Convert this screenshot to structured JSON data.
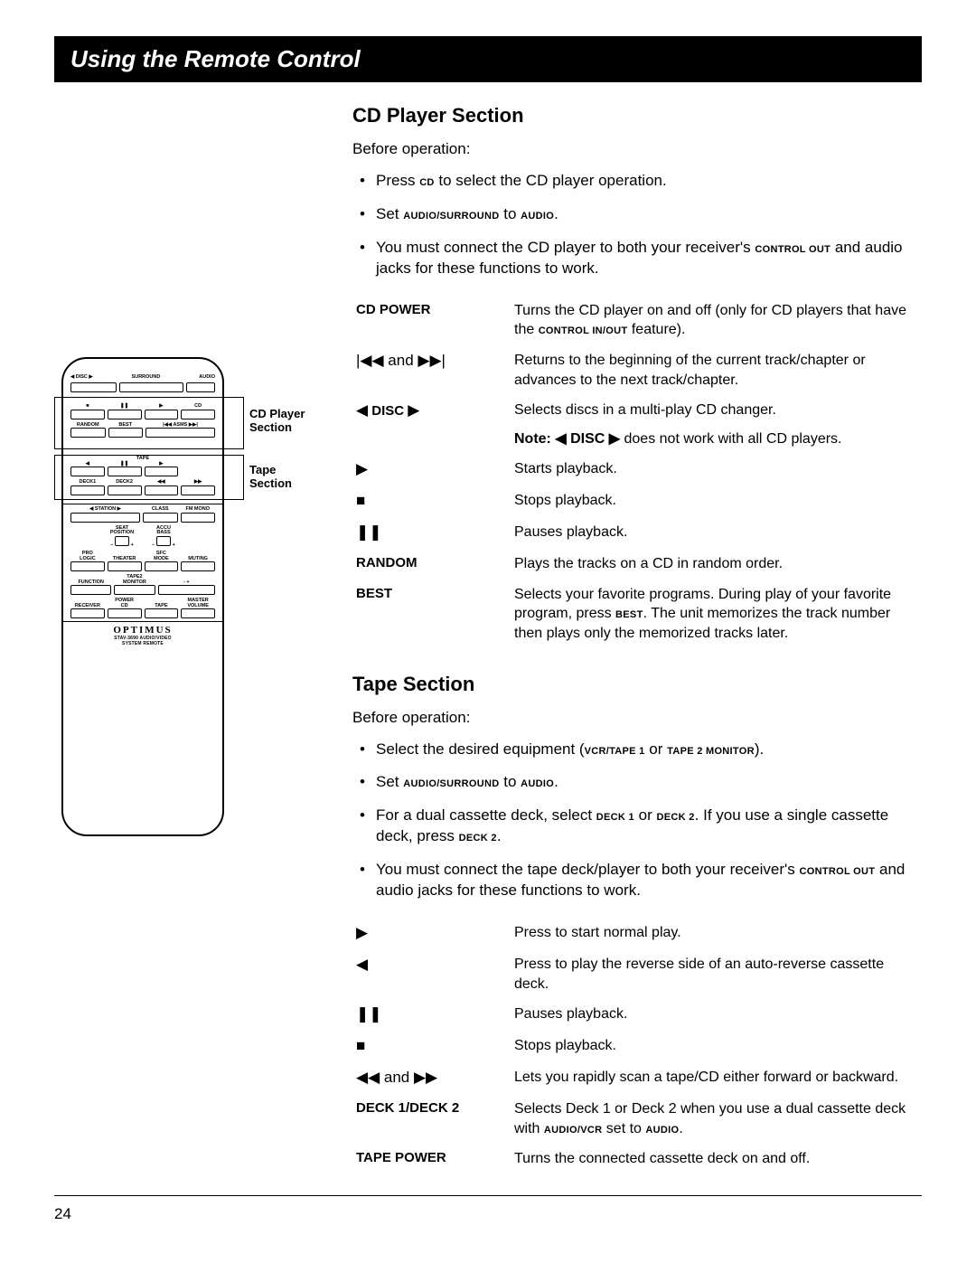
{
  "title": "Using the Remote Control",
  "page_number": "24",
  "cd": {
    "heading": "CD Player Section",
    "before": "Before operation:",
    "bullets": [
      {
        "pre": "Press ",
        "sc": "CD",
        "post": " to select the CD player operation."
      },
      {
        "pre": "Set ",
        "sc": "AUDIO/SURROUND",
        "mid": " to ",
        "sc2": "AUDIO",
        "post": "."
      },
      {
        "pre": "You must connect the CD player to both your receiver's ",
        "sc": "CONTROL OUT",
        "post": " and audio jacks for these functions to work."
      }
    ],
    "rows": [
      {
        "term": "CD POWER",
        "desc_pre": "Turns the CD player on and off (only for CD players that have the ",
        "desc_sc": "CONTROL IN/OUT",
        "desc_post": " feature)."
      },
      {
        "term_sym": "|◀◀ and ▶▶|",
        "desc": "Returns to the beginning of the current track/chapter or advances to the next track/chapter."
      },
      {
        "term_sym": "◀ DISC ▶",
        "desc": "Selects discs in a multi-play CD changer.",
        "note_pre": "Note: ◀ DISC ▶",
        "note_post": " does not work with all CD players."
      },
      {
        "term_sym": "▶",
        "desc": "Starts playback."
      },
      {
        "term_sym": "■",
        "desc": "Stops playback."
      },
      {
        "term_sym": "❚❚",
        "desc": "Pauses playback."
      },
      {
        "term": "RANDOM",
        "desc": "Plays the tracks on a CD in random order."
      },
      {
        "term": "BEST",
        "desc_pre": "Selects your favorite programs. During play of your favorite program, press ",
        "desc_sc": "BEST",
        "desc_post": ". The unit memorizes the track number then plays only the memorized tracks later."
      }
    ]
  },
  "tape": {
    "heading": "Tape Section",
    "before": "Before operation:",
    "bullets": [
      {
        "pre": "Select the desired equipment (",
        "sc": "VCR/TAPE 1",
        "mid": " or ",
        "sc2": "TAPE 2 MONITOR",
        "post": ")."
      },
      {
        "pre": "Set ",
        "sc": "AUDIO/SURROUND",
        "mid": " to ",
        "sc2": "AUDIO",
        "post": "."
      },
      {
        "pre": "For a dual cassette deck, select ",
        "sc": "DECK 1",
        "mid": " or ",
        "sc2": "DECK 2",
        "post_pre": ". If you use a single cassette deck, press ",
        "sc3": "DECK 2",
        "post": "."
      },
      {
        "pre": "You must connect the tape deck/player to both your receiver's ",
        "sc": "CONTROL OUT",
        "post": " and audio jacks for these functions to work."
      }
    ],
    "rows": [
      {
        "term_sym": "▶",
        "desc": "Press to start normal play."
      },
      {
        "term_sym": "◀",
        "desc": "Press to play the reverse side of an auto-reverse cassette deck."
      },
      {
        "term_sym": "❚❚",
        "desc": "Pauses playback."
      },
      {
        "term_sym": "■",
        "desc": "Stops playback."
      },
      {
        "term_sym": "◀◀ and ▶▶",
        "desc": "Lets you rapidly scan a tape/CD either forward or backward."
      },
      {
        "term": "DECK 1/DECK 2",
        "desc_pre": "Selects Deck 1 or Deck 2 when you use a dual cassette deck with ",
        "desc_sc": "AUDIO/VCR",
        "desc_mid": " set to ",
        "desc_sc2": "AUDIO",
        "desc_post": "."
      },
      {
        "term": "TAPE POWER",
        "desc": "Turns the connected cassette deck on and off."
      }
    ]
  },
  "remote": {
    "callout_cd": "CD Player\nSection",
    "callout_tape": "Tape\nSection",
    "brand": "OPTIMUS",
    "brandsub": "STAV-3690 AUDIO/VIDEO\nSYSTEM REMOTE",
    "top_labels": {
      "disc": "◀ DISC ▶",
      "surround": "SURROUND",
      "audio": "AUDIO"
    },
    "cd_row1": [
      "■",
      "❚❚",
      "▶",
      "CD"
    ],
    "cd_row2": [
      "RANDOM",
      "BEST",
      "|◀◀ ASMS ▶▶|"
    ],
    "tape_label": "TAPE",
    "tape_row1": [
      "◀",
      "❚❚",
      "▶"
    ],
    "tape_row2": [
      "DECK1",
      "DECK2",
      "◀◀",
      "▶▶"
    ],
    "mid_row": [
      "◀ STATION ▶",
      "CLASS",
      "FM MONO"
    ],
    "mid2": [
      "SEAT\nPOSITION",
      "ACCU\nBASS"
    ],
    "mid3": [
      "PRO\nLOGIC",
      "THEATER",
      "SFC\nMODE",
      "MUTING"
    ],
    "mid4": [
      "FUNCTION",
      "TAPE2\nMONITOR",
      "-   +"
    ],
    "bot": [
      "RECEIVER",
      "POWER\nCD",
      "TAPE",
      "MASTER\nVOLUME"
    ]
  }
}
